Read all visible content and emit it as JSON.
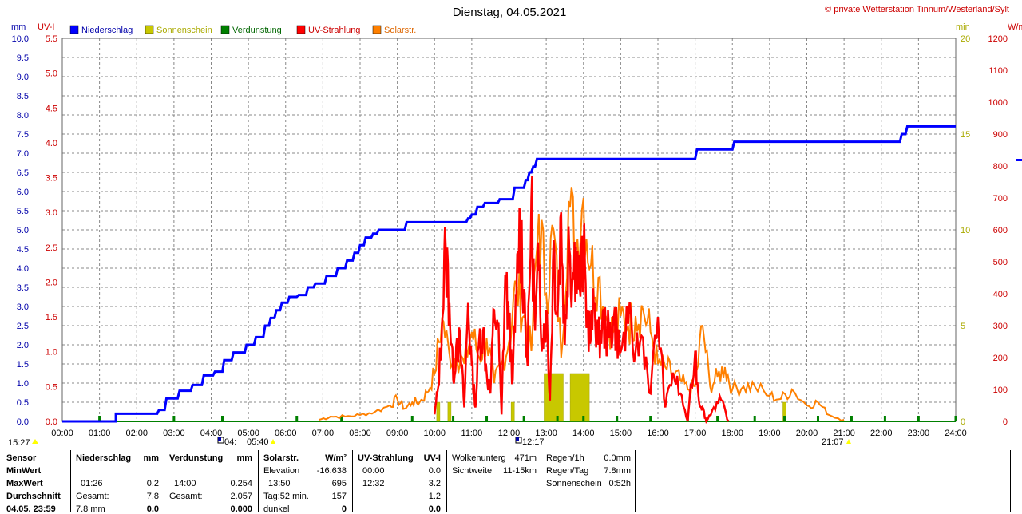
{
  "chart_data": {
    "type": "line",
    "title": "Dienstag, 04.05.2021",
    "copyright": "© private Wetterstation Tinnum/Westerland/Sylt",
    "x_ticks": [
      "00:00",
      "01:00",
      "02:00",
      "03:00",
      "04:00",
      "05:00",
      "06:00",
      "07:00",
      "08:00",
      "09:00",
      "10:00",
      "11:00",
      "12:00",
      "13:00",
      "14:00",
      "15:00",
      "16:00",
      "17:00",
      "18:00",
      "19:00",
      "20:00",
      "21:00",
      "22:00",
      "23:00",
      "24:00"
    ],
    "axes": {
      "mm": {
        "unit": "mm",
        "ticks": [
          "0.0",
          "0.5",
          "1.0",
          "1.5",
          "2.0",
          "2.5",
          "3.0",
          "3.5",
          "4.0",
          "4.5",
          "5.0",
          "5.5",
          "6.0",
          "6.5",
          "7.0",
          "7.5",
          "8.0",
          "8.5",
          "9.0",
          "9.5",
          "10.0"
        ],
        "range": [
          0,
          10
        ],
        "color": "#0000aa"
      },
      "uv": {
        "unit": "UV-I",
        "ticks": [
          "0.0",
          "0.5",
          "1.0",
          "1.5",
          "2.0",
          "2.5",
          "3.0",
          "3.5",
          "4.0",
          "4.5",
          "5.0",
          "5.5"
        ],
        "range": [
          0,
          5.5
        ],
        "color": "#cc0000"
      },
      "min": {
        "unit": "min",
        "ticks": [
          "0",
          "5",
          "10",
          "15",
          "20"
        ],
        "range": [
          0,
          20
        ],
        "color": "#aaaa00"
      },
      "wm2": {
        "unit": "W/m²",
        "ticks": [
          "0",
          "100",
          "200",
          "300",
          "400",
          "500",
          "600",
          "700",
          "800",
          "900",
          "1000",
          "1100",
          "1200"
        ],
        "range": [
          0,
          1200
        ],
        "color": "#cc0000"
      }
    },
    "legend": [
      {
        "name": "Niederschlag",
        "color": "#0000ff",
        "label_color": "#0000aa"
      },
      {
        "name": "Sonnenschein",
        "color": "#c8c800",
        "label_color": "#aaaa00"
      },
      {
        "name": "Verdunstung",
        "color": "#008000",
        "label_color": "#006600"
      },
      {
        "name": "UV-Strahlung",
        "color": "#ff0000",
        "label_color": "#cc0000"
      },
      {
        "name": "Solarstr.",
        "color": "#ff8000",
        "label_color": "#dd6600"
      }
    ],
    "series_rain_mm": {
      "x_hours": [
        0,
        1.44,
        1.44,
        2.55,
        2.6,
        2.75,
        2.8,
        3.1,
        3.15,
        3.45,
        3.5,
        3.75,
        3.8,
        4.05,
        4.1,
        4.3,
        4.35,
        4.55,
        4.6,
        4.9,
        4.95,
        5.15,
        5.2,
        5.4,
        5.45,
        5.55,
        5.6,
        5.7,
        5.75,
        5.85,
        5.9,
        6.05,
        6.1,
        6.3,
        6.35,
        6.55,
        6.6,
        6.75,
        6.8,
        7.05,
        7.1,
        7.35,
        7.4,
        7.6,
        7.65,
        7.8,
        7.85,
        7.95,
        8.0,
        8.1,
        8.15,
        8.3,
        8.35,
        8.45,
        8.5,
        9.2,
        9.25,
        10.85,
        10.9,
        10.95,
        11.0,
        11.1,
        11.15,
        11.3,
        11.35,
        11.7,
        11.75,
        12.1,
        12.15,
        12.4,
        12.45,
        12.5,
        12.55,
        12.6,
        12.65,
        12.7,
        12.75,
        17.0,
        17.05,
        18.0,
        18.05,
        22.5,
        22.55,
        22.65,
        22.7,
        24
      ],
      "y_mm": [
        0,
        0,
        0.2,
        0.2,
        0.3,
        0.3,
        0.6,
        0.6,
        0.8,
        0.8,
        0.95,
        0.95,
        1.2,
        1.2,
        1.3,
        1.3,
        1.6,
        1.6,
        1.8,
        1.8,
        2.0,
        2.0,
        2.2,
        2.2,
        2.5,
        2.5,
        2.7,
        2.7,
        2.9,
        2.9,
        3.1,
        3.1,
        3.25,
        3.25,
        3.3,
        3.3,
        3.5,
        3.5,
        3.6,
        3.6,
        3.8,
        3.8,
        4.0,
        4.0,
        4.2,
        4.2,
        4.4,
        4.4,
        4.6,
        4.6,
        4.8,
        4.8,
        4.9,
        4.9,
        5.0,
        5.0,
        5.2,
        5.2,
        5.3,
        5.3,
        5.4,
        5.4,
        5.6,
        5.6,
        5.7,
        5.7,
        5.8,
        5.8,
        6.1,
        6.1,
        6.3,
        6.3,
        6.5,
        6.5,
        6.65,
        6.65,
        6.85,
        6.85,
        7.1,
        7.1,
        7.3,
        7.3,
        7.5,
        7.5,
        7.7,
        7.7
      ],
      "color": "#0000ff"
    },
    "series_solar_wm2_hourly": {
      "x_hours": [
        6.9,
        7.2,
        7.6,
        8.0,
        8.4,
        8.8,
        9.0,
        9.2,
        9.4,
        9.6,
        9.8,
        10.0,
        10.2,
        10.4,
        10.6,
        10.8,
        11.0,
        11.2,
        11.4,
        11.6,
        11.8,
        12.0,
        12.2,
        12.4,
        12.6,
        12.8,
        13.0,
        13.2,
        13.4,
        13.6,
        13.8,
        14.0,
        14.2,
        14.4,
        14.6,
        14.8,
        15.0,
        15.2,
        15.4,
        15.6,
        15.8,
        16.0,
        16.2,
        16.4,
        16.6,
        16.8,
        17.0,
        17.2,
        17.4,
        17.6,
        17.8,
        18.0,
        18.3,
        18.6,
        19.0,
        19.3,
        19.6,
        20.0,
        20.3,
        20.6,
        21.0
      ],
      "y_wm2": [
        5,
        15,
        15,
        20,
        30,
        50,
        70,
        40,
        60,
        60,
        90,
        150,
        320,
        210,
        200,
        180,
        280,
        200,
        260,
        120,
        180,
        250,
        430,
        330,
        220,
        650,
        400,
        600,
        200,
        690,
        540,
        700,
        490,
        450,
        330,
        280,
        330,
        300,
        330,
        350,
        280,
        180,
        170,
        150,
        130,
        100,
        110,
        300,
        110,
        140,
        170,
        100,
        110,
        110,
        80,
        70,
        100,
        50,
        60,
        20,
        5
      ],
      "color": "#ff8000"
    },
    "series_uv_hourly": {
      "x_hours": [
        10.0,
        10.1,
        10.2,
        10.3,
        10.4,
        10.5,
        10.6,
        10.7,
        10.8,
        10.9,
        11.0,
        11.1,
        11.2,
        11.3,
        11.4,
        11.5,
        11.6,
        11.7,
        11.8,
        11.9,
        12.0,
        12.1,
        12.2,
        12.3,
        12.4,
        12.5,
        12.6,
        12.7,
        12.8,
        12.9,
        13.0,
        13.1,
        13.2,
        13.3,
        13.4,
        13.5,
        13.6,
        13.7,
        13.8,
        13.9,
        14.0,
        14.1,
        14.2,
        14.3,
        14.4,
        14.5,
        14.6,
        14.7,
        14.8,
        14.9,
        15.0,
        15.2,
        15.4,
        15.6,
        15.8,
        16.0,
        16.2,
        16.4,
        16.6,
        16.8,
        17.0,
        17.1,
        17.2,
        17.3,
        17.5,
        17.7,
        17.9
      ],
      "y_uv": [
        0.1,
        0.5,
        1.4,
        2.5,
        1.7,
        0.6,
        1.2,
        1.0,
        0.2,
        1.7,
        0.8,
        0.2,
        1.2,
        1.3,
        0.7,
        0.4,
        1.6,
        1.4,
        0.1,
        2.1,
        1.4,
        0.6,
        1.8,
        2.9,
        1.9,
        0.8,
        3.2,
        1.3,
        2.2,
        1.2,
        1.6,
        0.3,
        2.6,
        1.5,
        3.0,
        1.1,
        2.8,
        2.0,
        2.5,
        1.9,
        2.4,
        1.5,
        1.2,
        1.7,
        1.1,
        1.4,
        1.3,
        1.2,
        1.5,
        1.3,
        1.0,
        1.4,
        1.0,
        1.2,
        0.4,
        1.5,
        0.2,
        0.7,
        0.4,
        0.0,
        1.0,
        0.3,
        0.2,
        0.0,
        0.2,
        0.3,
        0.0
      ],
      "color": "#ff0000"
    },
    "sunshine_bars": [
      {
        "x_hours": 10.1,
        "min": 1
      },
      {
        "x_hours": 10.4,
        "min": 1
      },
      {
        "x_hours": 12.1,
        "min": 1
      },
      {
        "x_hours": 13.2,
        "min": 2.5
      },
      {
        "x_hours": 13.9,
        "min": 2.5
      },
      {
        "x_hours": 19.4,
        "min": 1
      }
    ],
    "evaporation_marks_hours": [
      1,
      3,
      4.3,
      6.3,
      7.5,
      9.4,
      10.5,
      11.4,
      12.4,
      13.3,
      14.0,
      14.9,
      15.8,
      16.8,
      17.6,
      18.6,
      19.4,
      20.3,
      21.2,
      22.1,
      23.0,
      24.0
    ],
    "time_markers": {
      "left_bottom": "15:27",
      "sunrise_a": "04:",
      "sunrise_b": "05:40",
      "noon": "12:17",
      "sunset": "21:07"
    }
  },
  "table": {
    "col1": {
      "header": "Sensor",
      "rows": [
        "MinWert",
        "MaxWert",
        "Durchschnitt",
        "04.05. 23:59"
      ]
    },
    "rain": {
      "header": "Niederschlag",
      "unit": "mm",
      "max_time": "01:26",
      "max_val": "0.2",
      "total_label": "Gesamt:",
      "total_val": "7.8",
      "last_val": "7.8 mm",
      "last_num": "0.0"
    },
    "evap": {
      "header": "Verdunstung",
      "unit": "mm",
      "max_time": "14:00",
      "max_val": "0.254",
      "total_label": "Gesamt:",
      "total_val": "2.057",
      "last_num": "0.000"
    },
    "solar": {
      "header": "Solarstr.",
      "unit": "W/m²",
      "r1_label": "Elevation",
      "r1_val": "-16.638",
      "r2_time": "13:50",
      "r2_val": "695",
      "r3_label": "Tag:52 min.",
      "r3_val": "157",
      "r4_label": "dunkel",
      "r4_val": "0"
    },
    "uv": {
      "header": "UV-Strahlung",
      "unit": "UV-I",
      "r1_time": "00:00",
      "r1_val": "0.0",
      "r2_time": "12:32",
      "r2_val": "3.2",
      "r3_val": "1.2",
      "r4_val": "0.0"
    },
    "misc1": {
      "a_label": "Wolkenunterg",
      "a_val": "471m",
      "b_label": "Sichtweite",
      "b_val": "11-15km"
    },
    "misc2": {
      "a_label": "Regen/1h",
      "a_val": "0.0mm",
      "b_label": "Regen/Tag",
      "b_val": "7.8mm",
      "c_label": "Sonnenschein",
      "c_val": "0:52h"
    }
  }
}
